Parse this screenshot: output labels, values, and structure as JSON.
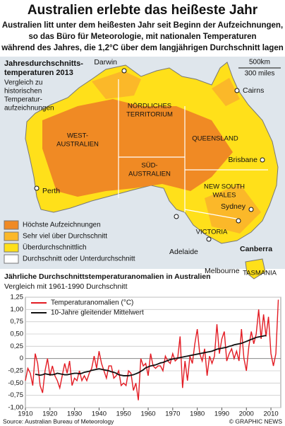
{
  "header": {
    "title": "Australien erlebte das heißeste Jahr",
    "subtitle": [
      "Australien litt unter dem heißesten Jahr seit Beginn der Aufzeichnungen,",
      "so das Büro für Meteorologie, mit nationalen Temperaturen",
      "während des Jahres, die 1,2°C über dem langjährigen Durchschnitt lagen"
    ]
  },
  "map": {
    "title": [
      "Jahresdurchschnitts-",
      "temperaturen 2013"
    ],
    "subtitle": [
      "Vergleich zu",
      "historischen",
      "Temperatur-",
      "aufzeichnungen"
    ],
    "scale": [
      "500km",
      "300 miles"
    ],
    "regions": {
      "nt": [
        "NÖRDLICHES",
        "TERRITORIUM"
      ],
      "wa": [
        "WEST-",
        "AUSTRALIEN"
      ],
      "sa": [
        "SÜD-",
        "AUSTRALIEN"
      ],
      "qld": "QUEENSLAND",
      "nsw": [
        "NEW SOUTH",
        "WALES"
      ],
      "vic": "VICTORIA",
      "tas": "TASMANIA"
    },
    "cities": [
      "Darwin",
      "Cairns",
      "Brisbane",
      "Perth",
      "Sydney",
      "Adelaide",
      "Canberra",
      "Melbourne"
    ],
    "legend": [
      {
        "label": "Höchste Aufzeichnungen",
        "color": "#f08a24"
      },
      {
        "label": "Sehr viel über Durchschnitt",
        "color": "#fbb829"
      },
      {
        "label": "Überdurchschnittlich",
        "color": "#ffe01a"
      },
      {
        "label": "Durchschnitt oder Unterdurchschnitt",
        "color": "#ffffff"
      }
    ]
  },
  "chart_data": {
    "type": "line",
    "title": "Jährliche Durchschnittstemperaturanomalien in Australien",
    "subtitle": "Vergleich mit 1961-1990 Durchschnitt",
    "x": [
      1910,
      1911,
      1912,
      1913,
      1914,
      1915,
      1916,
      1917,
      1918,
      1919,
      1920,
      1921,
      1922,
      1923,
      1924,
      1925,
      1926,
      1927,
      1928,
      1929,
      1930,
      1931,
      1932,
      1933,
      1934,
      1935,
      1936,
      1937,
      1938,
      1939,
      1940,
      1941,
      1942,
      1943,
      1944,
      1945,
      1946,
      1947,
      1948,
      1949,
      1950,
      1951,
      1952,
      1953,
      1954,
      1955,
      1956,
      1957,
      1958,
      1959,
      1960,
      1961,
      1962,
      1963,
      1964,
      1965,
      1966,
      1967,
      1968,
      1969,
      1970,
      1971,
      1972,
      1973,
      1974,
      1975,
      1976,
      1977,
      1978,
      1979,
      1980,
      1981,
      1982,
      1983,
      1984,
      1985,
      1986,
      1987,
      1988,
      1989,
      1990,
      1991,
      1992,
      1993,
      1994,
      1995,
      1996,
      1997,
      1998,
      1999,
      2000,
      2001,
      2002,
      2003,
      2004,
      2005,
      2006,
      2007,
      2008,
      2009,
      2010,
      2011,
      2012,
      2013
    ],
    "series": [
      {
        "name": "Temperaturanomalien (°C)",
        "color": "#e31b23",
        "values": [
          -0.45,
          -0.2,
          -0.3,
          -0.55,
          0.1,
          -0.1,
          -0.55,
          -0.7,
          -0.25,
          0.0,
          -0.35,
          -0.15,
          -0.35,
          -0.45,
          -0.6,
          -0.35,
          -0.1,
          -0.3,
          -0.05,
          -0.55,
          -0.4,
          -0.45,
          -0.25,
          -0.45,
          -0.35,
          -0.45,
          -0.3,
          -0.2,
          0.05,
          -0.2,
          0.15,
          -0.1,
          -0.25,
          -0.4,
          -0.15,
          -0.15,
          -0.4,
          -0.35,
          -0.25,
          -0.55,
          -0.5,
          -0.55,
          -0.25,
          -0.3,
          -0.65,
          -0.5,
          -0.85,
          0.0,
          -0.15,
          -0.1,
          -0.35,
          0.1,
          -0.15,
          -0.2,
          -0.15,
          -0.15,
          -0.25,
          0.05,
          -0.05,
          -0.1,
          0.1,
          -0.05,
          0.0,
          0.45,
          -0.6,
          -0.05,
          -0.45,
          0.05,
          -0.1,
          0.3,
          0.6,
          0.1,
          -0.05,
          0.2,
          -0.35,
          0.05,
          -0.1,
          0.05,
          0.7,
          0.1,
          0.4,
          0.55,
          -0.05,
          0.1,
          0.2,
          0.0,
          0.15,
          -0.05,
          0.6,
          0.0,
          -0.25,
          0.25,
          0.55,
          0.3,
          0.5,
          1.0,
          0.4,
          0.9,
          0.45,
          0.85,
          0.1,
          -0.15,
          0.1,
          1.2
        ]
      },
      {
        "name": "10-Jahre gleitender Mittelwert",
        "color": "#111111",
        "values": [
          null,
          null,
          null,
          null,
          -0.32,
          -0.33,
          -0.34,
          -0.33,
          -0.31,
          -0.32,
          -0.33,
          -0.33,
          -0.32,
          -0.3,
          -0.31,
          -0.32,
          -0.33,
          -0.33,
          -0.32,
          -0.31,
          -0.3,
          -0.3,
          -0.31,
          -0.3,
          -0.28,
          -0.27,
          -0.26,
          -0.24,
          -0.23,
          -0.22,
          -0.21,
          -0.22,
          -0.23,
          -0.24,
          -0.25,
          -0.27,
          -0.28,
          -0.3,
          -0.33,
          -0.34,
          -0.35,
          -0.35,
          -0.35,
          -0.34,
          -0.33,
          -0.31,
          -0.29,
          -0.26,
          -0.23,
          -0.19,
          -0.17,
          -0.15,
          -0.14,
          -0.13,
          -0.11,
          -0.09,
          -0.08,
          -0.06,
          -0.04,
          -0.02,
          -0.01,
          0.0,
          0.01,
          0.02,
          0.03,
          0.04,
          0.05,
          0.06,
          0.07,
          0.08,
          0.09,
          0.1,
          0.11,
          0.12,
          0.13,
          0.14,
          0.15,
          0.17,
          0.19,
          0.2,
          0.21,
          0.22,
          0.23,
          0.25,
          0.26,
          0.28,
          0.29,
          0.3,
          0.31,
          0.33,
          0.35,
          0.37,
          0.39,
          0.41,
          0.43,
          0.44,
          0.45,
          0.46,
          0.47,
          null,
          null,
          null,
          null,
          null
        ]
      }
    ],
    "xlim": [
      1910,
      2014
    ],
    "xticks": [
      1910,
      1920,
      1930,
      1940,
      1950,
      1960,
      1970,
      1980,
      1990,
      2000,
      2010
    ],
    "ylim": [
      -1.0,
      1.25
    ],
    "yticks": [
      {
        "value": 1.25,
        "label": "1,25"
      },
      {
        "value": 1,
        "label": "1,00"
      },
      {
        "value": 0.75,
        "label": "0,75"
      },
      {
        "value": 0.5,
        "label": "0,50"
      },
      {
        "value": 0.25,
        "label": "0,25"
      },
      0,
      {
        "value": -0.25,
        "label": "-0,25"
      },
      {
        "value": -0.5,
        "label": "-0,50"
      },
      {
        "value": -0.75,
        "label": "-0,75"
      },
      {
        "value": -1,
        "label": "-1,00"
      }
    ],
    "grid": true,
    "legend": "top-left"
  },
  "footer": {
    "source": "Source: Australian Bureau of Meteorology",
    "credit": "© GRAPHIC NEWS"
  }
}
